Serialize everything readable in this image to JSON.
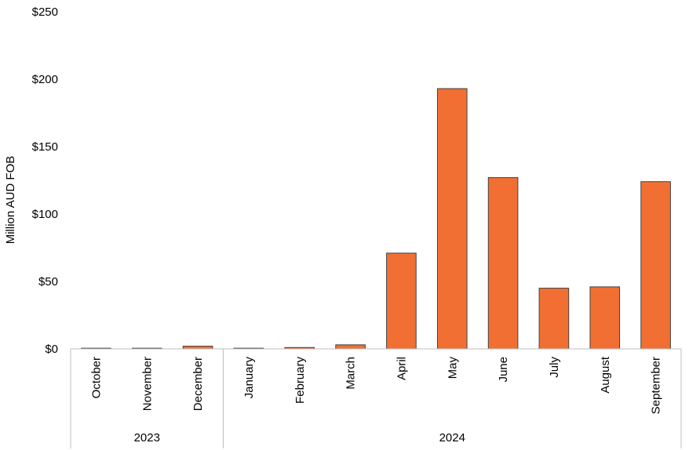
{
  "chart_data": {
    "type": "bar",
    "ylabel": "Million AUD FOB",
    "ylim": [
      0,
      250
    ],
    "yticks": [
      0,
      50,
      100,
      150,
      200,
      250
    ],
    "ytick_labels": [
      "$0",
      "$50",
      "$100",
      "$150",
      "$200",
      "$250"
    ],
    "categories": [
      "October",
      "November",
      "December",
      "January",
      "February",
      "March",
      "April",
      "May",
      "June",
      "July",
      "August",
      "September"
    ],
    "values": [
      0.5,
      0.5,
      2.0,
      0.5,
      1.0,
      3.0,
      71,
      193,
      127,
      45,
      46,
      124
    ],
    "groups": [
      {
        "label": "2023",
        "count": 3
      },
      {
        "label": "2024",
        "count": 9
      }
    ],
    "colors": {
      "bar_fill": "#f26f33",
      "bar_stroke": "#404040",
      "axis": "#bfbfbf"
    },
    "grid": false,
    "legend": "none"
  }
}
